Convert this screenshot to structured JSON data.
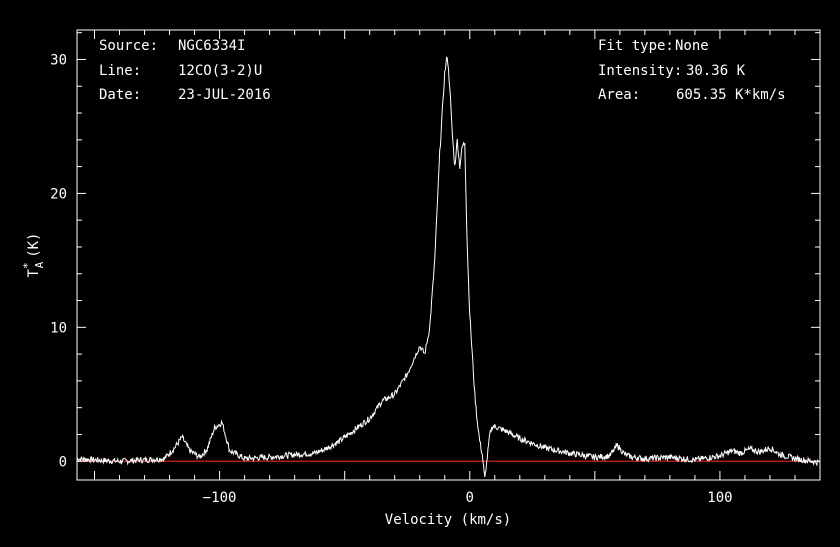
{
  "info_left": [
    {
      "label": "Source:",
      "value": "NGC6334I"
    },
    {
      "label": "Line:",
      "value": "12CO(3-2)U"
    },
    {
      "label": "Date:",
      "value": "23-JUL-2016"
    }
  ],
  "info_right": [
    {
      "label": "Fit type:",
      "value": "None"
    },
    {
      "label": "Intensity:",
      "value": "30.36 K"
    },
    {
      "label": "Area:",
      "value": "605.35 K*km/s"
    }
  ],
  "colors": {
    "background": "#000000",
    "axes": "#ffffff",
    "spectrum": "#ffffff",
    "baseline": "#d02020"
  },
  "chart_data": {
    "type": "line",
    "xlabel": "Velocity (km/s)",
    "ylabel": "T",
    "ylabel_super": "*",
    "ylabel_sub": "A",
    "ylabel_unit": "(K)",
    "xlim": [
      -157,
      140
    ],
    "ylim": [
      -1.4,
      32.2
    ],
    "xticks": [
      -100,
      0,
      100
    ],
    "xtick_labels": [
      "−100",
      "0",
      "100"
    ],
    "yticks": [
      0,
      10,
      20,
      30
    ],
    "ytick_labels": [
      "0",
      "10",
      "20",
      "30"
    ],
    "baseline_y": 0,
    "series": [
      {
        "x": [
          -157,
          -150,
          -140,
          -130,
          -122,
          -118,
          -115,
          -112,
          -108,
          -105,
          -102,
          -99,
          -96,
          -90,
          -80,
          -70,
          -62,
          -58,
          -52,
          -45,
          -40,
          -35,
          -30,
          -25,
          -22,
          -20,
          -18,
          -16,
          -14,
          -12,
          -10,
          -9,
          -8,
          -7,
          -6,
          -5,
          -4,
          -3,
          -2,
          -1,
          0,
          1,
          2,
          3,
          4,
          5,
          6,
          7,
          8,
          9,
          10,
          15,
          20,
          30,
          40,
          50,
          56,
          59,
          62,
          65,
          70,
          80,
          90,
          100,
          105,
          108,
          112,
          116,
          120,
          124,
          130,
          140
        ],
        "y": [
          0.2,
          0.1,
          0.0,
          0.1,
          0.2,
          1.0,
          1.8,
          0.8,
          0.3,
          0.9,
          2.5,
          2.9,
          0.8,
          0.2,
          0.3,
          0.5,
          0.6,
          0.9,
          1.5,
          2.5,
          3.2,
          4.5,
          5.0,
          6.5,
          7.8,
          8.6,
          8.0,
          10.0,
          15.0,
          23.0,
          29.0,
          30.3,
          28.0,
          24.5,
          22.0,
          24.0,
          22.0,
          23.5,
          23.8,
          16.0,
          11.0,
          8.0,
          5.0,
          3.0,
          1.5,
          0.5,
          -1.3,
          0.3,
          2.0,
          2.6,
          2.6,
          2.2,
          1.7,
          1.0,
          0.6,
          0.3,
          0.4,
          1.2,
          0.5,
          0.3,
          0.2,
          0.3,
          0.1,
          0.4,
          0.8,
          0.6,
          0.9,
          0.7,
          1.0,
          0.5,
          0.2,
          -0.1
        ]
      }
    ]
  }
}
